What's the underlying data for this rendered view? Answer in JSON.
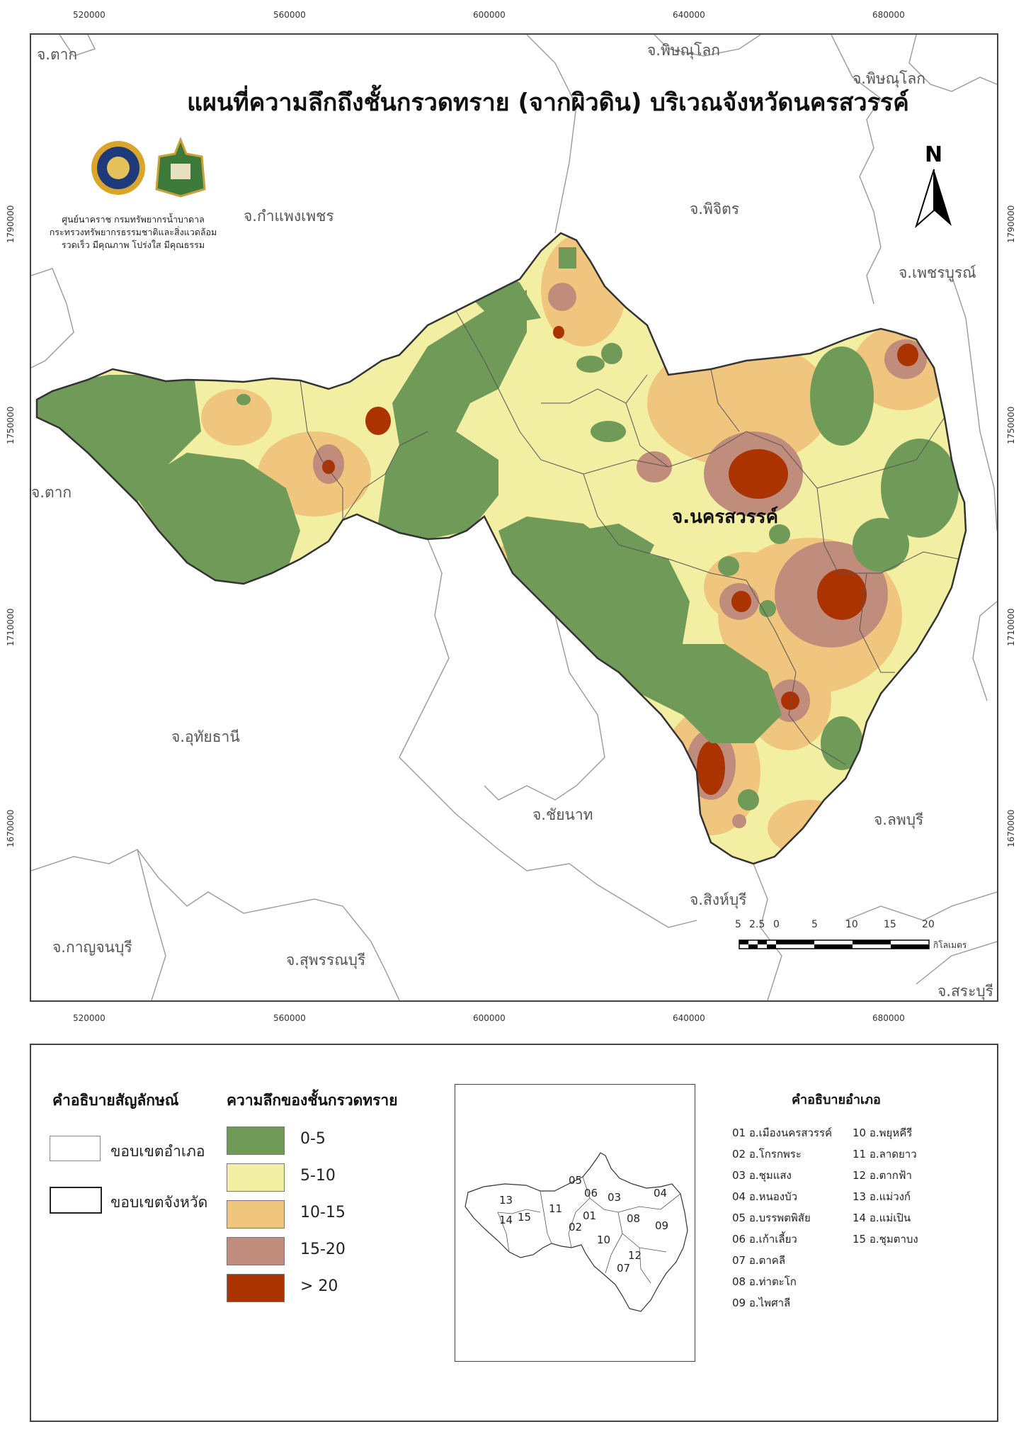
{
  "map": {
    "title": "แผนที่ความลึกถึงชั้นกรวดทราย (จากผิวดิน) บริเวณจังหวัดนครสวรรค์",
    "focus_province": "จ.นครสวรรค์",
    "agency_lines": [
      "ศูนย์นาคราช กรมทรัพยากรน้ำบาดาล",
      "กระทรวงทรัพยากรธรรมชาติและสิ่งแวดล้อม",
      "รวดเร็ว มีคุณภาพ โปร่งใส มีคุณธรรม"
    ],
    "north_label": "N",
    "coords_x": [
      "520000",
      "560000",
      "600000",
      "640000",
      "680000"
    ],
    "coords_y": [
      "1790000",
      "1750000",
      "1710000",
      "1670000"
    ],
    "provinces": {
      "tak_top": "จ.ตาก",
      "phitsanulok_top": "จ.พิษณุโลก",
      "phitsanulok_right": "จ.พิษณุโลก",
      "kamphaeng": "จ.กำแพงเพชร",
      "phichit": "จ.พิจิตร",
      "phetchabun": "จ.เพชรบูรณ์",
      "tak_left": "จ.ตาก",
      "uthai": "จ.อุทัยธานี",
      "chainat": "จ.ชัยนาท",
      "lopburi": "จ.ลพบุรี",
      "singburi": "จ.สิงห์บุรี",
      "kanchanaburi": "จ.กาญจนบุรี",
      "suphanburi": "จ.สุพรรณบุรี",
      "saraburi": "จ.สระบุรี"
    },
    "scale": {
      "ticks": [
        "5",
        "2.5",
        "0",
        "5",
        "10",
        "15",
        "20"
      ],
      "unit": "กิโลเมตร"
    }
  },
  "legend": {
    "symbol_title": "คำอธิบายสัญลักษณ์",
    "district_boundary": "ขอบเขตอำเภอ",
    "province_boundary": "ขอบเขตจังหวัด",
    "classes_title": "ความลึกของชั้นกรวดทราย",
    "classes": [
      {
        "label": "0-5",
        "color": "#6f9a58"
      },
      {
        "label": "5-10",
        "color": "#f2efa3"
      },
      {
        "label": "10-15",
        "color": "#f0c67e"
      },
      {
        "label": "15-20",
        "color": "#c08c7c"
      },
      {
        "label": "> 20",
        "color": "#aa3300"
      }
    ],
    "districts_title": "คำอธิบายอำเภอ",
    "districts": [
      "01 อ.เมืองนครสวรรค์",
      "02 อ.โกรกพระ",
      "03 อ.ชุมแสง",
      "04 อ.หนองบัว",
      "05 อ.บรรพตพิสัย",
      "06 อ.เก้าเลี้ยว",
      "07 อ.ตาคลี",
      "08 อ.ท่าตะโก",
      "09 อ.ไพศาลี",
      "10 อ.พยุหคีรี",
      "11 อ.ลาดยาว",
      "12 อ.ตากฟ้า",
      "13 อ.แม่วงก์",
      "14 อ.แม่เปิน",
      "15 อ.ชุมตาบง"
    ],
    "inset_numbers": [
      "01",
      "02",
      "03",
      "04",
      "05",
      "06",
      "07",
      "08",
      "09",
      "10",
      "11",
      "12",
      "13",
      "14",
      "15"
    ]
  }
}
